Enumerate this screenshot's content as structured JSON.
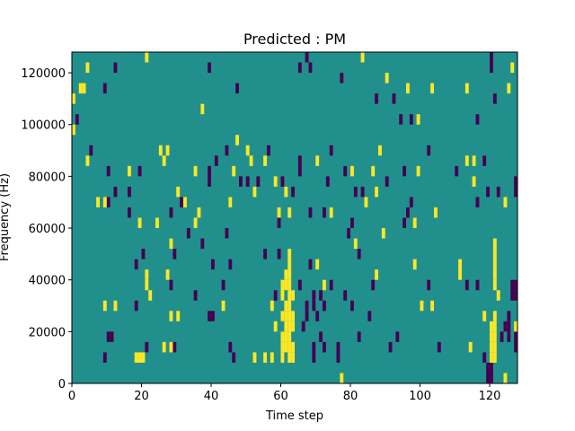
{
  "chart_data": {
    "type": "heatmap",
    "title": "Predicted : PM",
    "xlabel": "Time step",
    "ylabel": "Frequency (Hz)",
    "xlim": [
      0,
      128
    ],
    "ylim": [
      0,
      128000
    ],
    "xticks": [
      0,
      20,
      40,
      60,
      80,
      100,
      120
    ],
    "yticks": [
      0,
      20000,
      40000,
      60000,
      80000,
      100000,
      120000
    ],
    "colors": {
      "background": "#21908d",
      "positive": "#fde725",
      "negative": "#440154"
    },
    "cell_height_hz": 4000,
    "positive_cells": [
      [
        4,
        120000
      ],
      [
        21,
        124000
      ],
      [
        83,
        124000
      ],
      [
        126,
        120000
      ],
      [
        0,
        108000
      ],
      [
        2,
        112000
      ],
      [
        3,
        112000
      ],
      [
        0,
        96000
      ],
      [
        37,
        104000
      ],
      [
        90,
        116000
      ],
      [
        103,
        112000
      ],
      [
        113,
        112000
      ],
      [
        125,
        112000
      ],
      [
        99,
        100000
      ],
      [
        96,
        112000
      ],
      [
        25,
        88000
      ],
      [
        27,
        88000
      ],
      [
        47,
        92000
      ],
      [
        50,
        88000
      ],
      [
        55,
        84000
      ],
      [
        58,
        76000
      ],
      [
        4,
        84000
      ],
      [
        16,
        80000
      ],
      [
        26,
        84000
      ],
      [
        35,
        80000
      ],
      [
        46,
        80000
      ],
      [
        51,
        84000
      ],
      [
        70,
        84000
      ],
      [
        80,
        80000
      ],
      [
        86,
        80000
      ],
      [
        88,
        88000
      ],
      [
        99,
        80000
      ],
      [
        113,
        84000
      ],
      [
        115,
        84000
      ],
      [
        7,
        68000
      ],
      [
        9,
        68000
      ],
      [
        30,
        72000
      ],
      [
        32,
        68000
      ],
      [
        36,
        64000
      ],
      [
        45,
        68000
      ],
      [
        52,
        72000
      ],
      [
        61,
        72000
      ],
      [
        62,
        64000
      ],
      [
        74,
        64000
      ],
      [
        84,
        68000
      ],
      [
        87,
        72000
      ],
      [
        104,
        64000
      ],
      [
        115,
        76000
      ],
      [
        124,
        68000
      ],
      [
        19,
        60000
      ],
      [
        24,
        60000
      ],
      [
        28,
        52000
      ],
      [
        35,
        60000
      ],
      [
        59,
        64000
      ],
      [
        89,
        56000
      ],
      [
        98,
        60000
      ],
      [
        21,
        36000
      ],
      [
        21,
        40000
      ],
      [
        27,
        40000
      ],
      [
        43,
        28000
      ],
      [
        22,
        32000
      ],
      [
        28,
        24000
      ],
      [
        30,
        24000
      ],
      [
        57,
        28000
      ],
      [
        9,
        28000
      ],
      [
        12,
        28000
      ],
      [
        18,
        8000
      ],
      [
        19,
        8000
      ],
      [
        20,
        8000
      ],
      [
        26,
        12000
      ],
      [
        28,
        12000
      ],
      [
        55,
        8000
      ],
      [
        57,
        8000
      ],
      [
        60,
        8000
      ],
      [
        58,
        20000
      ],
      [
        60,
        24000
      ],
      [
        61,
        28000
      ],
      [
        60,
        32000
      ],
      [
        61,
        36000
      ],
      [
        61,
        40000
      ],
      [
        62,
        44000
      ],
      [
        62,
        8000
      ],
      [
        62,
        12000
      ],
      [
        62,
        16000
      ],
      [
        62,
        20000
      ],
      [
        62,
        24000
      ],
      [
        62,
        28000
      ],
      [
        62,
        32000
      ],
      [
        62,
        36000
      ],
      [
        62,
        40000
      ],
      [
        60,
        12000
      ],
      [
        61,
        12000
      ],
      [
        60,
        16000
      ],
      [
        61,
        16000
      ],
      [
        61,
        20000
      ],
      [
        63,
        8000
      ],
      [
        63,
        12000
      ],
      [
        63,
        20000
      ],
      [
        63,
        24000
      ],
      [
        60,
        36000
      ],
      [
        63,
        32000
      ],
      [
        52,
        8000
      ],
      [
        61,
        24000
      ],
      [
        62,
        48000
      ],
      [
        70,
        44000
      ],
      [
        72,
        36000
      ],
      [
        87,
        40000
      ],
      [
        98,
        44000
      ],
      [
        100,
        28000
      ],
      [
        111,
        40000
      ],
      [
        114,
        12000
      ],
      [
        118,
        24000
      ],
      [
        121,
        20000
      ],
      [
        121,
        24000
      ],
      [
        121,
        16000
      ],
      [
        120,
        16000
      ],
      [
        120,
        12000
      ],
      [
        121,
        8000
      ],
      [
        120,
        8000
      ],
      [
        121,
        12000
      ],
      [
        120,
        20000
      ],
      [
        121,
        52000
      ],
      [
        121,
        48000
      ],
      [
        121,
        44000
      ],
      [
        121,
        40000
      ],
      [
        121,
        36000
      ],
      [
        122,
        32000
      ],
      [
        127,
        20000
      ],
      [
        124,
        0
      ],
      [
        77,
        0
      ],
      [
        81,
        52000
      ],
      [
        103,
        28000
      ],
      [
        111,
        44000
      ]
    ],
    "negative_cells": [
      [
        12,
        120000
      ],
      [
        39,
        120000
      ],
      [
        67,
        124000
      ],
      [
        68,
        120000
      ],
      [
        120,
        124000
      ],
      [
        120,
        120000
      ],
      [
        9,
        112000
      ],
      [
        47,
        112000
      ],
      [
        65,
        120000
      ],
      [
        77,
        116000
      ],
      [
        87,
        108000
      ],
      [
        92,
        108000
      ],
      [
        94,
        100000
      ],
      [
        97,
        100000
      ],
      [
        116,
        100000
      ],
      [
        121,
        108000
      ],
      [
        1,
        100000
      ],
      [
        5,
        88000
      ],
      [
        41,
        84000
      ],
      [
        44,
        88000
      ],
      [
        56,
        88000
      ],
      [
        65,
        84000
      ],
      [
        74,
        88000
      ],
      [
        102,
        88000
      ],
      [
        118,
        84000
      ],
      [
        10,
        80000
      ],
      [
        19,
        80000
      ],
      [
        39,
        80000
      ],
      [
        60,
        76000
      ],
      [
        65,
        80000
      ],
      [
        78,
        80000
      ],
      [
        95,
        80000
      ],
      [
        110,
        80000
      ],
      [
        12,
        72000
      ],
      [
        16,
        72000
      ],
      [
        31,
        68000
      ],
      [
        39,
        76000
      ],
      [
        48,
        76000
      ],
      [
        50,
        76000
      ],
      [
        53,
        76000
      ],
      [
        73,
        76000
      ],
      [
        81,
        72000
      ],
      [
        90,
        76000
      ],
      [
        122,
        72000
      ],
      [
        10,
        68000
      ],
      [
        28,
        64000
      ],
      [
        63,
        72000
      ],
      [
        68,
        64000
      ],
      [
        72,
        64000
      ],
      [
        83,
        72000
      ],
      [
        96,
        64000
      ],
      [
        97,
        68000
      ],
      [
        119,
        72000
      ],
      [
        127,
        72000
      ],
      [
        127,
        76000
      ],
      [
        116,
        68000
      ],
      [
        44,
        56000
      ],
      [
        37,
        52000
      ],
      [
        16,
        64000
      ],
      [
        20,
        48000
      ],
      [
        18,
        44000
      ],
      [
        29,
        48000
      ],
      [
        33,
        56000
      ],
      [
        59,
        60000
      ],
      [
        79,
        56000
      ],
      [
        80,
        60000
      ],
      [
        95,
        60000
      ],
      [
        40,
        44000
      ],
      [
        45,
        44000
      ],
      [
        55,
        48000
      ],
      [
        59,
        48000
      ],
      [
        68,
        44000
      ],
      [
        82,
        48000
      ],
      [
        28,
        36000
      ],
      [
        35,
        32000
      ],
      [
        43,
        36000
      ],
      [
        65,
        36000
      ],
      [
        58,
        32000
      ],
      [
        69,
        28000
      ],
      [
        69,
        32000
      ],
      [
        70,
        24000
      ],
      [
        71,
        32000
      ],
      [
        74,
        36000
      ],
      [
        78,
        32000
      ],
      [
        86,
        36000
      ],
      [
        102,
        36000
      ],
      [
        113,
        36000
      ],
      [
        116,
        36000
      ],
      [
        126,
        36000
      ],
      [
        127,
        36000
      ],
      [
        126,
        32000
      ],
      [
        127,
        32000
      ],
      [
        18,
        28000
      ],
      [
        40,
        24000
      ],
      [
        60,
        24000
      ],
      [
        72,
        28000
      ],
      [
        80,
        28000
      ],
      [
        85,
        24000
      ],
      [
        67,
        28000
      ],
      [
        67,
        24000
      ],
      [
        66,
        20000
      ],
      [
        10,
        16000
      ],
      [
        11,
        16000
      ],
      [
        21,
        12000
      ],
      [
        39,
        24000
      ],
      [
        71,
        16000
      ],
      [
        82,
        16000
      ],
      [
        93,
        16000
      ],
      [
        123,
        16000
      ],
      [
        125,
        16000
      ],
      [
        127,
        16000
      ],
      [
        127,
        12000
      ],
      [
        124,
        20000
      ],
      [
        125,
        20000
      ],
      [
        125,
        24000
      ],
      [
        9,
        8000
      ],
      [
        29,
        12000
      ],
      [
        45,
        12000
      ],
      [
        46,
        8000
      ],
      [
        69,
        12000
      ],
      [
        69,
        8000
      ],
      [
        72,
        12000
      ],
      [
        76,
        12000
      ],
      [
        76,
        8000
      ],
      [
        91,
        12000
      ],
      [
        105,
        12000
      ],
      [
        118,
        8000
      ],
      [
        119,
        4000
      ],
      [
        120,
        4000
      ],
      [
        119,
        0
      ],
      [
        120,
        0
      ]
    ]
  }
}
